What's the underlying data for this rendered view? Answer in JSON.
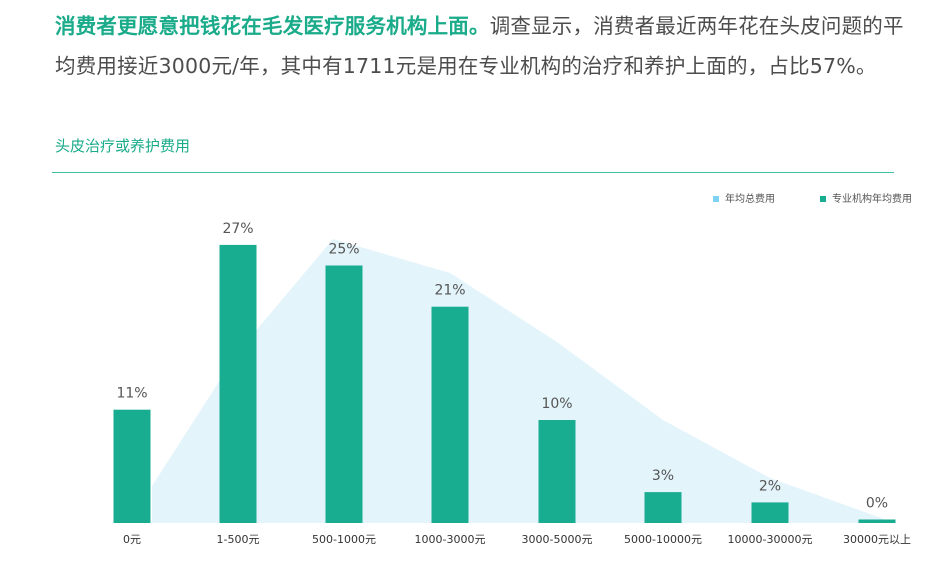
{
  "intro": {
    "highlight": "消费者更愿意把钱花在毛发医疗服务机构上面。",
    "body": "调查显示，消费者最近两年花在头皮问题的平均费用接近3000元/年，其中有1711元是用在专业机构的治疗和养护上面的，占比57%。"
  },
  "section_title": "头皮治疗或养护费用",
  "colors": {
    "accent": "#1aab8a",
    "bar": "#18ad91",
    "area": "#e3f4fb",
    "legend_area": "#7fd3f2"
  },
  "chart_data": {
    "type": "bar",
    "title": "头皮治疗或养护费用",
    "categories": [
      "0元",
      "1-500元",
      "500-1000元",
      "1000-3000元",
      "3000-5000元",
      "5000-10000元",
      "10000-30000元",
      "30000元以上"
    ],
    "series": [
      {
        "name": "年均总费用",
        "kind": "area",
        "values": [
          null,
          null,
          null,
          null,
          null,
          null,
          null,
          null
        ]
      },
      {
        "name": "专业机构年均费用",
        "kind": "bar",
        "values": [
          11,
          27,
          25,
          21,
          10,
          3,
          2,
          0
        ]
      }
    ],
    "data_labels": [
      "11%",
      "27%",
      "25%",
      "21%",
      "10%",
      "3%",
      "2%",
      "0%"
    ],
    "unit": "%",
    "legend_position": "top-right",
    "grid": false
  }
}
